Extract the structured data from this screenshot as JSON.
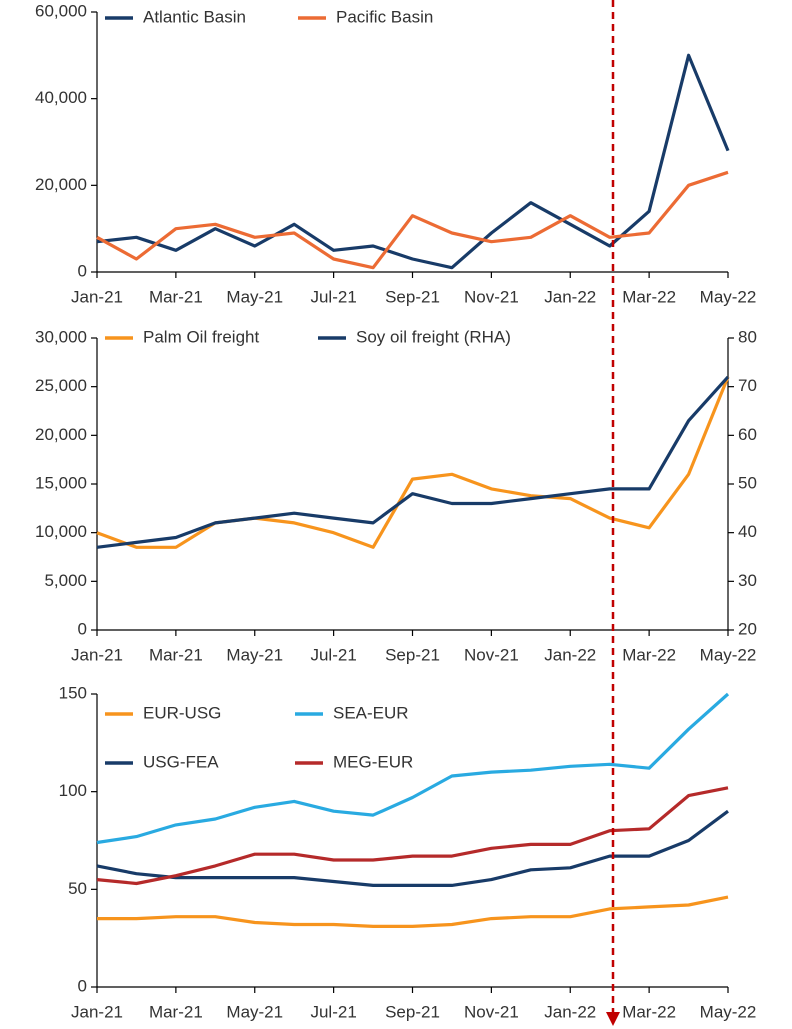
{
  "chart_data": [
    {
      "type": "line",
      "x": [
        "2021-01",
        "2021-02",
        "2021-03",
        "2021-04",
        "2021-05",
        "2021-06",
        "2021-07",
        "2021-08",
        "2021-09",
        "2021-10",
        "2021-11",
        "2021-12",
        "2022-01",
        "2022-02",
        "2022-03",
        "2022-04",
        "2022-05"
      ],
      "xlim": [
        "2021-01",
        "2022-05"
      ],
      "xticks": [
        {
          "value": "2021-01",
          "label": "Jan-21"
        },
        {
          "value": "2021-03",
          "label": "Mar-21"
        },
        {
          "value": "2021-05",
          "label": "May-21"
        },
        {
          "value": "2021-07",
          "label": "Jul-21"
        },
        {
          "value": "2021-09",
          "label": "Sep-21"
        },
        {
          "value": "2021-11",
          "label": "Nov-21"
        },
        {
          "value": "2022-01",
          "label": "Jan-22"
        },
        {
          "value": "2022-03",
          "label": "Mar-22"
        },
        {
          "value": "2022-05",
          "label": "May-22"
        }
      ],
      "ylim": [
        0,
        60000
      ],
      "yticks": [
        0,
        {
          "value": 20000,
          "label": "20,000"
        },
        {
          "value": 40000,
          "label": "40,000"
        },
        {
          "value": 60000,
          "label": "60,000"
        }
      ],
      "series": [
        {
          "name": "Atlantic Basin",
          "color": "#183b68",
          "values": [
            7000,
            8000,
            5000,
            10000,
            6000,
            11000,
            5000,
            6000,
            3000,
            1000,
            9000,
            16000,
            11000,
            6000,
            14000,
            50000,
            28000
          ]
        },
        {
          "name": "Pacific Basin",
          "color": "#ec6b34",
          "values": [
            8000,
            3000,
            10000,
            11000,
            8000,
            9000,
            3000,
            1000,
            13000,
            9000,
            7000,
            8000,
            13000,
            8000,
            9000,
            20000,
            23000
          ]
        }
      ]
    },
    {
      "type": "line",
      "x": [
        "2021-01",
        "2021-02",
        "2021-03",
        "2021-04",
        "2021-05",
        "2021-06",
        "2021-07",
        "2021-08",
        "2021-09",
        "2021-10",
        "2021-11",
        "2021-12",
        "2022-01",
        "2022-02",
        "2022-03",
        "2022-04",
        "2022-05"
      ],
      "xlim": [
        "2021-01",
        "2022-05"
      ],
      "xticks": [
        {
          "value": "2021-01",
          "label": "Jan-21"
        },
        {
          "value": "2021-03",
          "label": "Mar-21"
        },
        {
          "value": "2021-05",
          "label": "May-21"
        },
        {
          "value": "2021-07",
          "label": "Jul-21"
        },
        {
          "value": "2021-09",
          "label": "Sep-21"
        },
        {
          "value": "2021-11",
          "label": "Nov-21"
        },
        {
          "value": "2022-01",
          "label": "Jan-22"
        },
        {
          "value": "2022-03",
          "label": "Mar-22"
        },
        {
          "value": "2022-05",
          "label": "May-22"
        }
      ],
      "ylim": [
        0,
        30000
      ],
      "yticks": [
        0,
        {
          "value": 5000,
          "label": "5,000"
        },
        {
          "value": 10000,
          "label": "10,000"
        },
        {
          "value": 15000,
          "label": "15,000"
        },
        {
          "value": 20000,
          "label": "20,000"
        },
        {
          "value": 25000,
          "label": "25,000"
        },
        {
          "value": 30000,
          "label": "30,000"
        }
      ],
      "y2lim": [
        20,
        80
      ],
      "y2ticks": [
        20,
        30,
        40,
        50,
        60,
        70,
        80
      ],
      "series": [
        {
          "name": "Palm Oil freight",
          "color": "#f7941d",
          "values": [
            10000,
            8500,
            8500,
            11000,
            11500,
            11000,
            10000,
            8500,
            15500,
            16000,
            14500,
            13800,
            13500,
            11500,
            10500,
            16000,
            26000
          ]
        },
        {
          "name": "Soy oil freight (RHA)",
          "color": "#183b68",
          "axis": "y2",
          "values": [
            37,
            38,
            39,
            42,
            43,
            44,
            43,
            42,
            48,
            46,
            46,
            47,
            48,
            49,
            49,
            63,
            72
          ]
        }
      ]
    },
    {
      "type": "line",
      "x": [
        "2021-01",
        "2021-02",
        "2021-03",
        "2021-04",
        "2021-05",
        "2021-06",
        "2021-07",
        "2021-08",
        "2021-09",
        "2021-10",
        "2021-11",
        "2021-12",
        "2022-01",
        "2022-02",
        "2022-03",
        "2022-04",
        "2022-05"
      ],
      "xlim": [
        "2021-01",
        "2022-05"
      ],
      "xticks": [
        {
          "value": "2021-01",
          "label": "Jan-21"
        },
        {
          "value": "2021-03",
          "label": "Mar-21"
        },
        {
          "value": "2021-05",
          "label": "May-21"
        },
        {
          "value": "2021-07",
          "label": "Jul-21"
        },
        {
          "value": "2021-09",
          "label": "Sep-21"
        },
        {
          "value": "2021-11",
          "label": "Nov-21"
        },
        {
          "value": "2022-01",
          "label": "Jan-22"
        },
        {
          "value": "2022-03",
          "label": "Mar-22"
        },
        {
          "value": "2022-05",
          "label": "May-22"
        }
      ],
      "ylim": [
        0,
        150
      ],
      "yticks": [
        0,
        50,
        100,
        150
      ],
      "series": [
        {
          "name": "EUR-USG",
          "color": "#f7941d",
          "values": [
            35,
            35,
            36,
            36,
            33,
            32,
            32,
            31,
            31,
            32,
            35,
            36,
            36,
            40,
            41,
            42,
            46
          ]
        },
        {
          "name": "SEA-EUR",
          "color": "#29aae1",
          "values": [
            74,
            77,
            83,
            86,
            92,
            95,
            90,
            88,
            97,
            108,
            110,
            111,
            113,
            114,
            112,
            132,
            150
          ]
        },
        {
          "name": "USG-FEA",
          "color": "#183b68",
          "values": [
            62,
            58,
            56,
            56,
            56,
            56,
            54,
            52,
            52,
            52,
            55,
            60,
            61,
            67,
            67,
            75,
            90
          ]
        },
        {
          "name": "MEG-EUR",
          "color": "#b52a2a",
          "values": [
            55,
            53,
            57,
            62,
            68,
            68,
            65,
            65,
            67,
            67,
            71,
            73,
            73,
            80,
            81,
            98,
            102
          ]
        }
      ]
    }
  ]
}
